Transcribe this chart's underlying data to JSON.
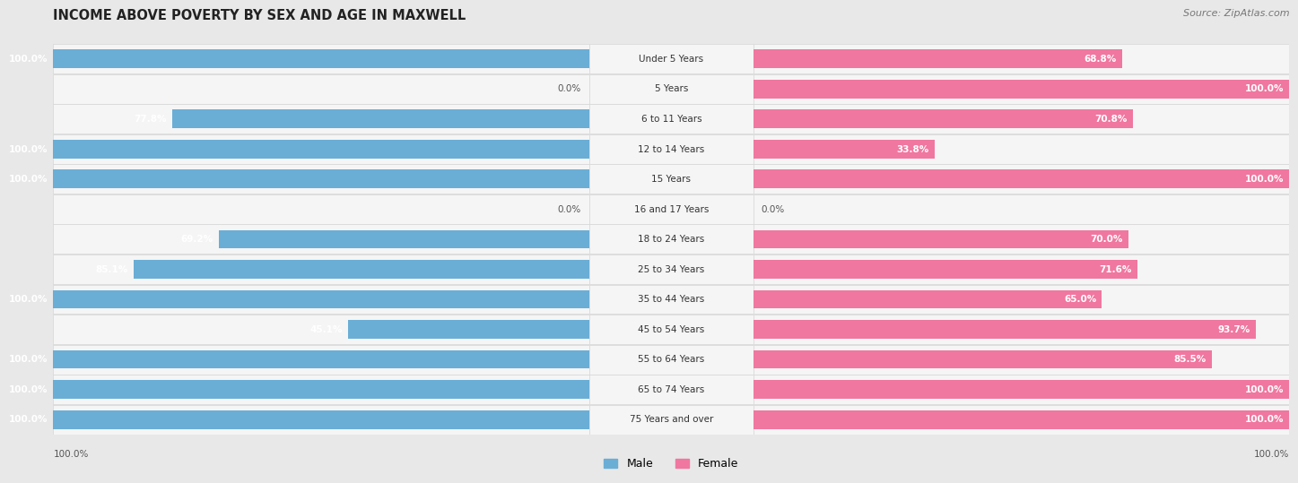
{
  "title": "INCOME ABOVE POVERTY BY SEX AND AGE IN MAXWELL",
  "source": "Source: ZipAtlas.com",
  "categories": [
    "Under 5 Years",
    "5 Years",
    "6 to 11 Years",
    "12 to 14 Years",
    "15 Years",
    "16 and 17 Years",
    "18 to 24 Years",
    "25 to 34 Years",
    "35 to 44 Years",
    "45 to 54 Years",
    "55 to 64 Years",
    "65 to 74 Years",
    "75 Years and over"
  ],
  "male": [
    100.0,
    0.0,
    77.8,
    100.0,
    100.0,
    0.0,
    69.2,
    85.1,
    100.0,
    45.1,
    100.0,
    100.0,
    100.0
  ],
  "female": [
    68.8,
    100.0,
    70.8,
    33.8,
    100.0,
    0.0,
    70.0,
    71.6,
    65.0,
    93.7,
    85.5,
    100.0,
    100.0
  ],
  "male_color": "#6aaed6",
  "female_color": "#f077a0",
  "male_color_light": "#b8d6ea",
  "female_color_light": "#f9c0d3",
  "male_label": "Male",
  "female_label": "Female",
  "background_color": "#e8e8e8",
  "row_bg_color": "#f5f5f5",
  "row_border_color": "#d0d0d0",
  "title_fontsize": 10.5,
  "source_fontsize": 8,
  "label_fontsize": 7.5,
  "category_fontsize": 7.5,
  "bar_height": 0.62,
  "footer_label": "100.0%"
}
